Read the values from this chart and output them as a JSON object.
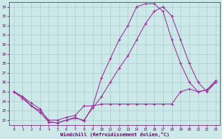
{
  "bg_color": "#cce8e8",
  "line_color": "#993399",
  "grid_color": "#aacccc",
  "xlabel": "Windchill (Refroidissement éolien,°C)",
  "xlabel_color": "#660066",
  "tick_color": "#660066",
  "ylim": [
    21.5,
    34.5
  ],
  "xlim": [
    -0.5,
    23.5
  ],
  "yticks": [
    22,
    23,
    24,
    25,
    26,
    27,
    28,
    29,
    30,
    31,
    32,
    33,
    34
  ],
  "xticks": [
    0,
    1,
    2,
    3,
    4,
    5,
    6,
    7,
    8,
    9,
    10,
    11,
    12,
    13,
    14,
    15,
    16,
    17,
    18,
    19,
    20,
    21,
    22,
    23
  ],
  "line1_x": [
    0,
    1,
    2,
    3,
    4,
    5,
    6,
    7,
    8,
    9,
    10,
    11,
    12,
    13,
    14,
    15,
    16,
    17,
    18,
    19,
    20,
    21,
    22,
    23
  ],
  "line1_y": [
    25.0,
    24.5,
    23.8,
    23.2,
    21.8,
    21.7,
    22.0,
    22.3,
    21.9,
    23.5,
    23.7,
    23.7,
    23.7,
    23.7,
    23.7,
    23.7,
    23.7,
    23.7,
    23.7,
    25.0,
    25.3,
    25.0,
    25.2,
    26.0
  ],
  "line2_x": [
    0,
    1,
    2,
    3,
    4,
    5,
    6,
    7,
    8,
    9,
    10,
    11,
    12,
    13,
    14,
    15,
    16,
    17,
    18,
    19,
    20,
    21,
    22,
    23
  ],
  "line2_y": [
    25.0,
    24.5,
    23.5,
    23.0,
    22.0,
    22.0,
    22.3,
    22.5,
    23.5,
    23.5,
    26.5,
    28.5,
    30.5,
    32.0,
    34.0,
    34.3,
    34.3,
    33.5,
    30.5,
    28.0,
    26.0,
    25.0,
    25.2,
    26.2
  ],
  "line3_x": [
    0,
    1,
    2,
    3,
    4,
    5,
    6,
    7,
    8,
    9,
    10,
    11,
    12,
    13,
    14,
    15,
    16,
    17,
    18,
    19,
    20,
    21,
    22,
    23
  ],
  "line3_y": [
    25.0,
    24.3,
    23.5,
    22.8,
    21.8,
    21.7,
    22.0,
    22.2,
    22.0,
    23.3,
    24.5,
    26.0,
    27.5,
    28.8,
    30.5,
    32.2,
    33.5,
    34.0,
    33.0,
    30.5,
    28.0,
    26.0,
    25.0,
    26.0
  ]
}
